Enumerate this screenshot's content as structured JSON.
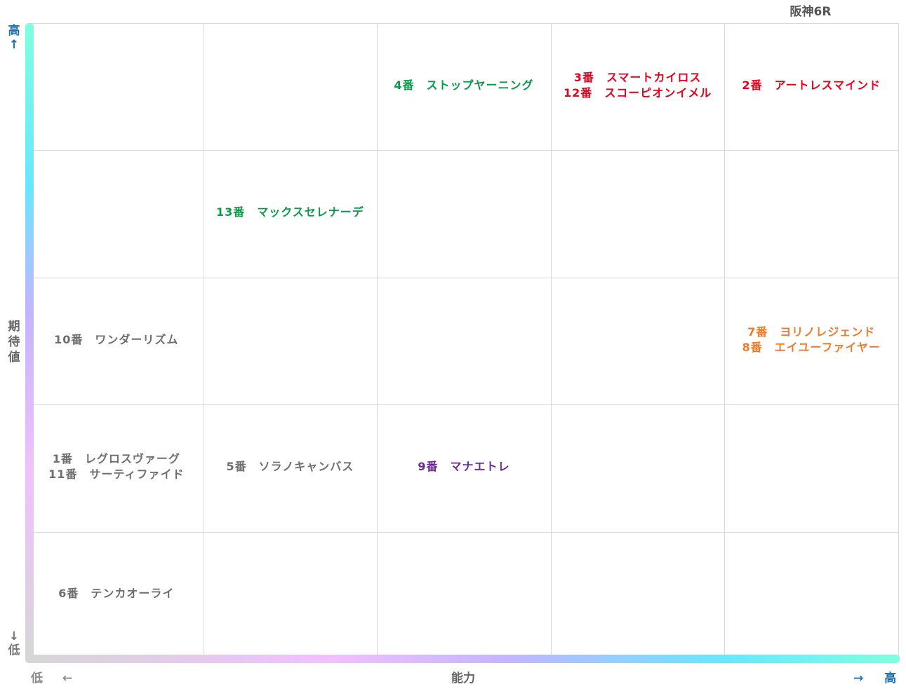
{
  "title": "阪神6R",
  "axes": {
    "y_high": "高",
    "y_high_arrow": "↑",
    "y_name": [
      "期",
      "待",
      "値"
    ],
    "y_low": "低",
    "y_low_arrow": "↓",
    "x_low": "低",
    "x_low_arrow": "←",
    "x_name": "能力",
    "x_high": "高",
    "x_high_arrow": "→"
  },
  "colors": {
    "red": "#e8001c",
    "green": "#0a9b48",
    "orange": "#ef7a2a",
    "purple": "#6a2a8f",
    "gray": "#6e6e6e",
    "grid": "#d9d9d9",
    "axis_gradient": [
      "#7fffe0",
      "#66e8ff",
      "#c4b5ff",
      "#f0c0ff",
      "#d6d6d6"
    ]
  },
  "chart_data": {
    "type": "table",
    "title": "阪神6R",
    "xlabel": "能力",
    "ylabel": "期待値",
    "columns": 5,
    "rows": 5,
    "entries": [
      {
        "col": 2,
        "row": 0,
        "color": "green",
        "lines": [
          "4番　ストップヤーニング"
        ]
      },
      {
        "col": 3,
        "row": 0,
        "color": "red",
        "lines": [
          "3番　スマートカイロス",
          "12番　スコーピオンイメル"
        ]
      },
      {
        "col": 4,
        "row": 0,
        "color": "red",
        "lines": [
          "2番　アートレスマインド"
        ]
      },
      {
        "col": 1,
        "row": 1,
        "color": "green",
        "lines": [
          "13番　マックスセレナーデ"
        ]
      },
      {
        "col": 0,
        "row": 2,
        "color": "gray",
        "lines": [
          "10番　ワンダーリズム"
        ]
      },
      {
        "col": 4,
        "row": 2,
        "color": "orange",
        "lines": [
          "7番　ヨリノレジェンド",
          "8番　エイユーファイヤー"
        ]
      },
      {
        "col": 0,
        "row": 3,
        "color": "gray",
        "lines": [
          "1番　レグロスヴァーグ",
          "11番　サーティファイド"
        ]
      },
      {
        "col": 1,
        "row": 3,
        "color": "gray",
        "lines": [
          "5番　ソラノキャンバス"
        ]
      },
      {
        "col": 2,
        "row": 3,
        "color": "purple",
        "lines": [
          "9番　マナエトレ"
        ]
      },
      {
        "col": 0,
        "row": 4,
        "color": "gray",
        "lines": [
          "6番　テンカオーライ"
        ]
      }
    ]
  }
}
